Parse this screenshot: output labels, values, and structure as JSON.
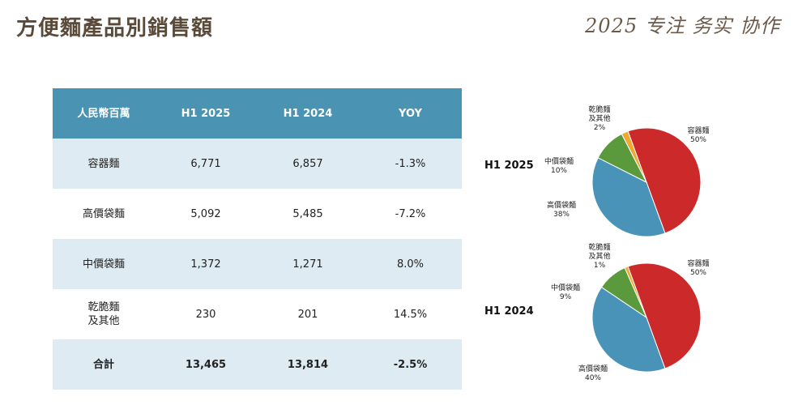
{
  "header": {
    "title": "方便麵產品別銷售額",
    "slogan": "2025 专注 务实 协作"
  },
  "table": {
    "columns": [
      "人民幣百萬",
      "H1 2025",
      "H1 2024",
      "YOY"
    ],
    "rows": [
      {
        "name": "容器麵",
        "h1_2025": "6,771",
        "h1_2024": "6,857",
        "yoy": "-1.3%"
      },
      {
        "name": "高價袋麵",
        "h1_2025": "5,092",
        "h1_2024": "5,485",
        "yoy": "-7.2%"
      },
      {
        "name": "中價袋麵",
        "h1_2025": "1,372",
        "h1_2024": "1,271",
        "yoy": "8.0%"
      },
      {
        "name": "乾脆麵\n及其他",
        "h1_2025": "230",
        "h1_2024": "201",
        "yoy": "14.5%"
      }
    ],
    "total": {
      "name": "合計",
      "h1_2025": "13,465",
      "h1_2024": "13,814",
      "yoy": "-2.5%"
    }
  },
  "chart_data": [
    {
      "type": "pie",
      "title": "H1 2025",
      "slices": [
        {
          "name": "容器麵",
          "value": 50,
          "label": "50%",
          "color": "#cc2a2a"
        },
        {
          "name": "高價袋麵",
          "value": 38,
          "label": "38%",
          "color": "#4a93b8"
        },
        {
          "name": "中價袋麵",
          "value": 10,
          "label": "10%",
          "color": "#5b9a3c"
        },
        {
          "name": "乾脆麵\n及其他",
          "value": 2,
          "label": "2%",
          "color": "#f0a830"
        }
      ]
    },
    {
      "type": "pie",
      "title": "H1 2024",
      "slices": [
        {
          "name": "容器麵",
          "value": 50,
          "label": "50%",
          "color": "#cc2a2a"
        },
        {
          "name": "高價袋麵",
          "value": 40,
          "label": "40%",
          "color": "#4a93b8"
        },
        {
          "name": "中價袋麵",
          "value": 9,
          "label": "9%",
          "color": "#5b9a3c"
        },
        {
          "name": "乾脆麵\n及其他",
          "value": 1,
          "label": "1%",
          "color": "#f0a830"
        }
      ]
    }
  ]
}
